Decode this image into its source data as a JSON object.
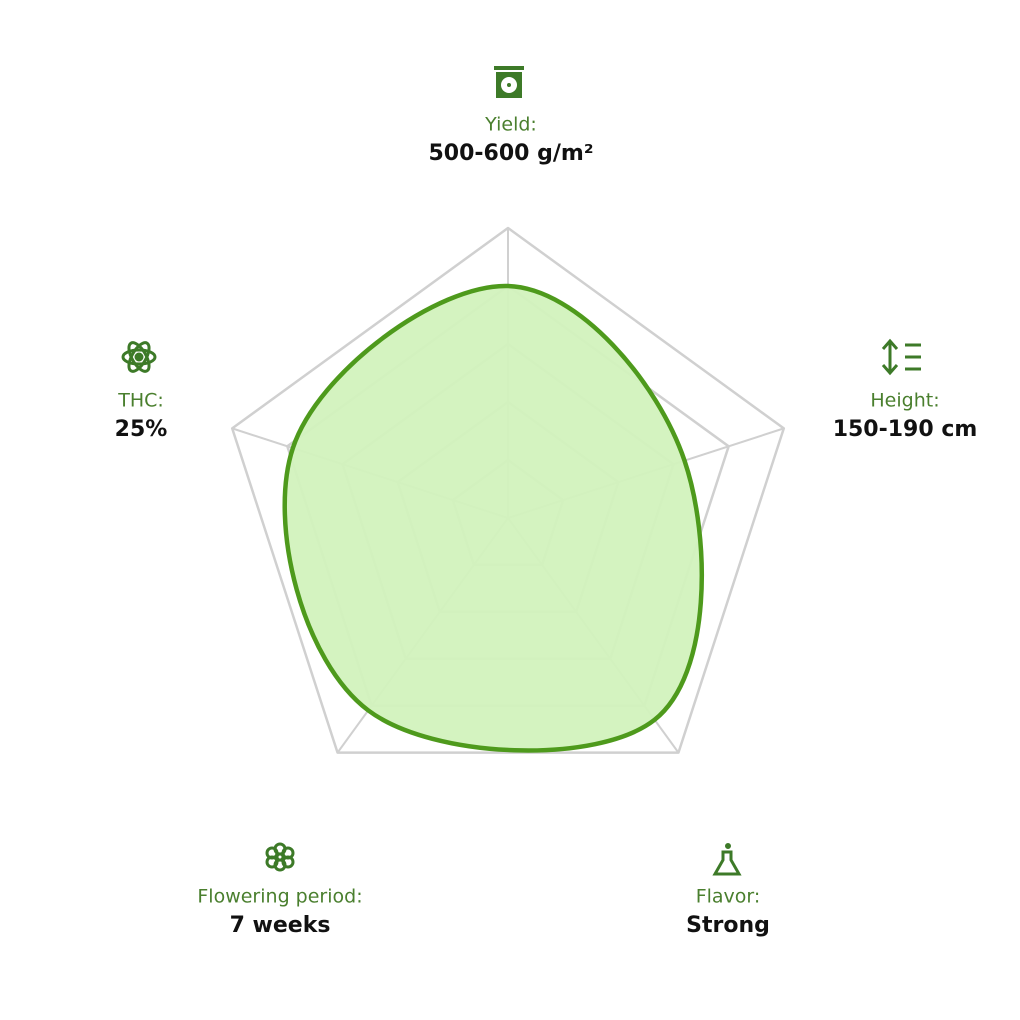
{
  "chart_data": {
    "type": "radar",
    "categories": [
      "Yield:",
      "Height:",
      "Flavor:",
      "Flowering period:",
      "THC:"
    ],
    "value_texts": [
      "500-600 g/m²",
      "150-190 cm",
      "Strong",
      "7 weeks",
      "25%"
    ],
    "values": [
      4,
      3.2,
      4.3,
      4.1,
      3.9
    ],
    "rlim": [
      0,
      5
    ],
    "rticks": [
      1,
      2,
      3,
      4,
      5
    ],
    "color": "#4e9a1c",
    "fill": "#d2f2bd",
    "grid": true
  }
}
